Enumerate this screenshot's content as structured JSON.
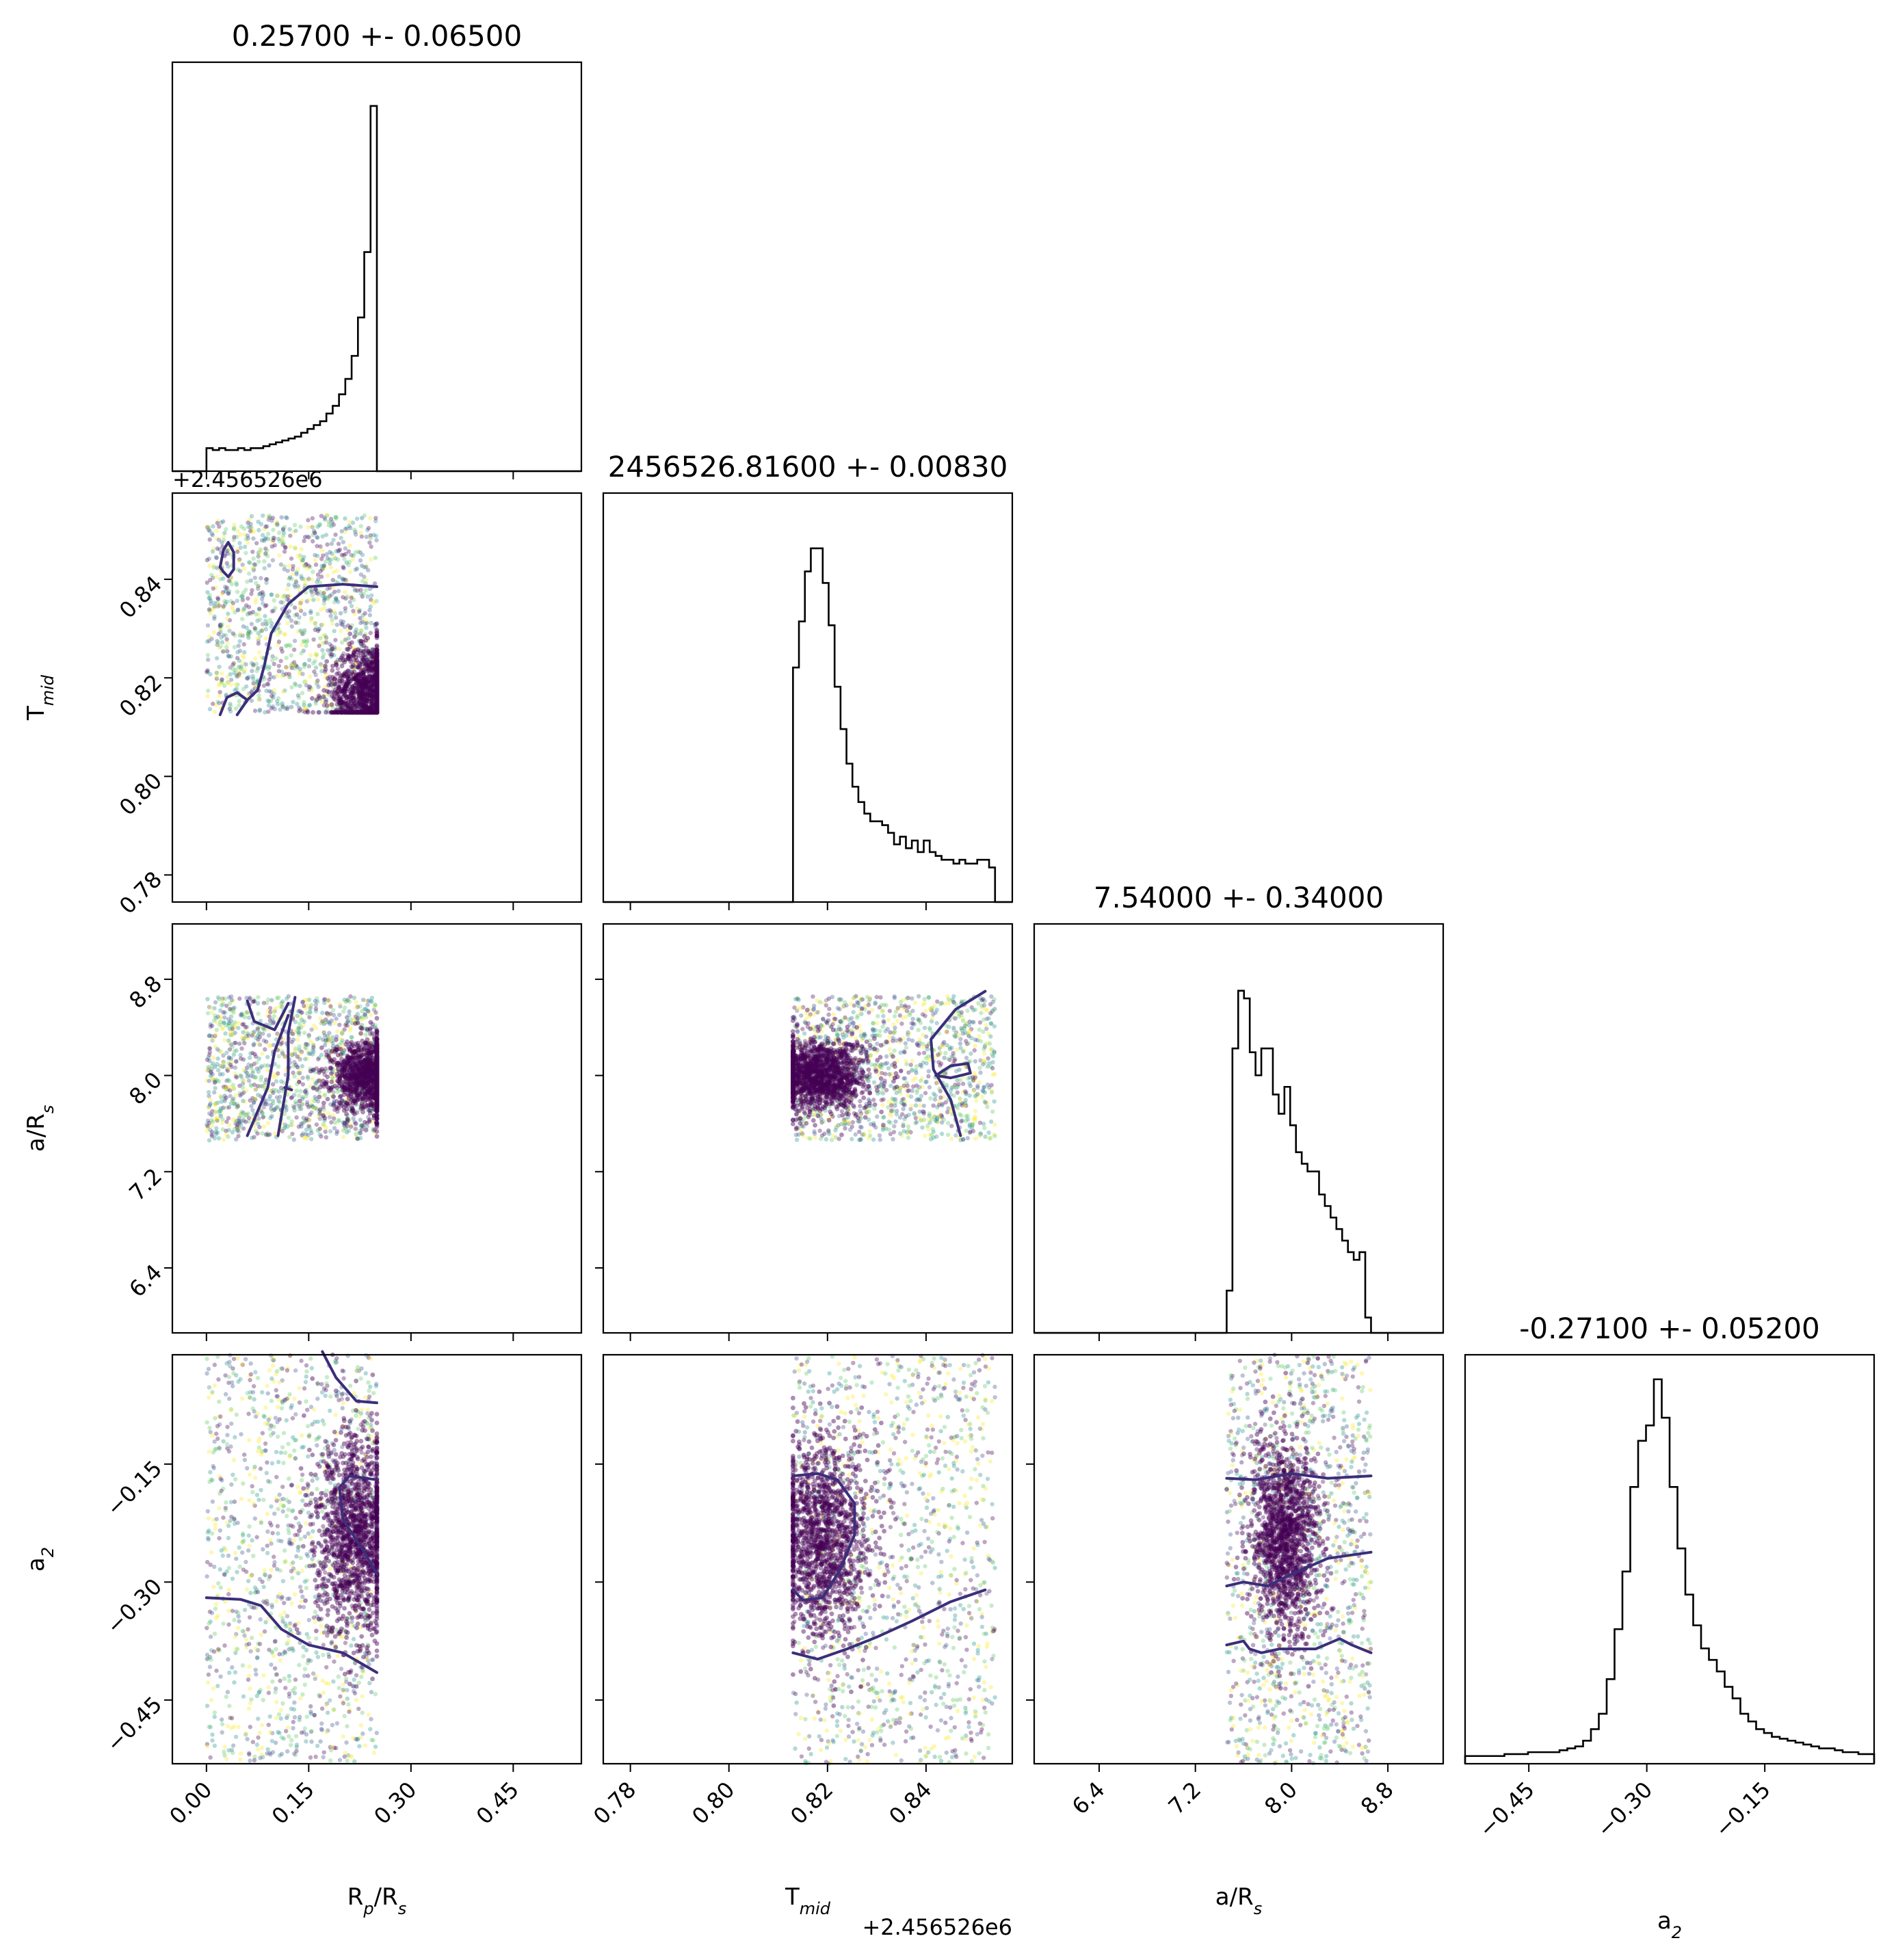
{
  "chart_data": {
    "type": "corner",
    "parameters": [
      {
        "key": "rp",
        "label": "R",
        "sub": "p",
        "label2": "/R",
        "sub2": "s"
      },
      {
        "key": "tmid",
        "label": "T",
        "sub": "mid",
        "label2": "",
        "sub2": ""
      },
      {
        "key": "ars",
        "label": "a/R",
        "sub": "s",
        "label2": "",
        "sub2": ""
      },
      {
        "key": "a2",
        "label": "a",
        "sub": "2",
        "label2": "",
        "sub2": ""
      }
    ],
    "titles": [
      "0.25700 +- 0.06500",
      "2456526.81600 +- 0.00830",
      "7.54000 +- 0.34000",
      "-0.27100 +- 0.05200"
    ],
    "ranges": {
      "rp": [
        -0.05,
        0.55
      ],
      "tmid": [
        0.7745,
        0.8575
      ],
      "ars": [
        5.86,
        9.26
      ],
      "a2": [
        -0.531,
        -0.011
      ]
    },
    "ticks": {
      "rp": [
        0.0,
        0.15,
        0.3,
        0.45
      ],
      "tmid": [
        0.78,
        0.8,
        0.82,
        0.84
      ],
      "ars": [
        6.4,
        7.2,
        8.0,
        8.8
      ],
      "a2": [
        -0.45,
        -0.3,
        -0.15
      ]
    },
    "tick_labels": {
      "rp": [
        "0.00",
        "0.15",
        "0.30",
        "0.45"
      ],
      "tmid": [
        "0.78",
        "0.80",
        "0.82",
        "0.84"
      ],
      "ars": [
        "6.4",
        "7.2",
        "8.0",
        "8.8"
      ],
      "a2": [
        "−0.45",
        "−0.30",
        "−0.15"
      ]
    },
    "offset_text": "+2.456526e6",
    "histograms": {
      "rp": {
        "range": [
          0.0,
          0.25
        ],
        "ymax": 1.0,
        "counts": [
          0.06,
          0.055,
          0.06,
          0.055,
          0.055,
          0.06,
          0.055,
          0.06,
          0.06,
          0.065,
          0.07,
          0.075,
          0.08,
          0.085,
          0.09,
          0.1,
          0.11,
          0.12,
          0.13,
          0.15,
          0.17,
          0.2,
          0.24,
          0.3,
          0.4,
          0.57,
          0.95
        ]
      },
      "tmid": {
        "range": [
          0.813,
          0.854
        ],
        "ymax": 1.0,
        "counts": [
          0.61,
          0.73,
          0.86,
          0.92,
          0.92,
          0.83,
          0.72,
          0.56,
          0.45,
          0.36,
          0.3,
          0.26,
          0.23,
          0.21,
          0.21,
          0.2,
          0.18,
          0.15,
          0.17,
          0.14,
          0.16,
          0.13,
          0.16,
          0.13,
          0.12,
          0.11,
          0.11,
          0.1,
          0.11,
          0.1,
          0.1,
          0.11,
          0.11,
          0.09
        ]
      },
      "ars": {
        "range": [
          7.46,
          8.66
        ],
        "ymax": 1.0,
        "counts": [
          0.11,
          0.74,
          0.89,
          0.87,
          0.73,
          0.67,
          0.74,
          0.74,
          0.62,
          0.57,
          0.64,
          0.54,
          0.47,
          0.44,
          0.42,
          0.42,
          0.36,
          0.33,
          0.3,
          0.27,
          0.24,
          0.21,
          0.19,
          0.21,
          0.04
        ]
      },
      "a2": {
        "range": [
          -0.531,
          -0.011
        ],
        "ymax": 1.0,
        "counts": [
          0.02,
          0.02,
          0.02,
          0.02,
          0.02,
          0.025,
          0.025,
          0.025,
          0.03,
          0.03,
          0.03,
          0.03,
          0.035,
          0.04,
          0.045,
          0.06,
          0.09,
          0.13,
          0.22,
          0.35,
          0.5,
          0.72,
          0.84,
          0.88,
          1.0,
          0.9,
          0.72,
          0.56,
          0.44,
          0.36,
          0.3,
          0.27,
          0.24,
          0.2,
          0.17,
          0.13,
          0.11,
          0.09,
          0.08,
          0.07,
          0.065,
          0.06,
          0.055,
          0.05,
          0.045,
          0.04,
          0.04,
          0.035,
          0.03,
          0.03,
          0.025,
          0.025
        ]
      }
    },
    "scatter": {
      "rp-tmid": {
        "dense": [
          0.245,
          0.817
        ],
        "spread": [
          0.0,
          0.25,
          0.813,
          0.853
        ]
      },
      "rp-ars": {
        "dense": [
          0.245,
          8.0
        ],
        "spread": [
          0.0,
          0.25,
          7.46,
          8.66
        ]
      },
      "tmid-ars": {
        "dense": [
          0.818,
          8.0
        ],
        "spread": [
          0.813,
          0.854,
          7.46,
          8.66
        ]
      },
      "rp-a2": {
        "dense": [
          0.22,
          -0.24
        ],
        "spread": [
          0.0,
          0.25,
          -0.531,
          -0.011
        ]
      },
      "tmid-a2": {
        "dense": [
          0.819,
          -0.245
        ],
        "spread": [
          0.813,
          0.854,
          -0.531,
          -0.011
        ]
      },
      "ars-a2": {
        "dense": [
          7.95,
          -0.245
        ],
        "spread": [
          7.46,
          8.66,
          -0.531,
          -0.011
        ]
      }
    },
    "contours": {
      "rp-tmid": [
        [
          [
            0.02,
            0.8425
          ],
          [
            0.025,
            0.846
          ],
          [
            0.032,
            0.8475
          ],
          [
            0.04,
            0.8455
          ],
          [
            0.04,
            0.842
          ],
          [
            0.032,
            0.8405
          ],
          [
            0.025,
            0.8415
          ],
          [
            0.02,
            0.8425
          ]
        ],
        [
          [
            0.25,
            0.8385
          ],
          [
            0.2,
            0.839
          ],
          [
            0.15,
            0.8385
          ],
          [
            0.12,
            0.835
          ],
          [
            0.095,
            0.829
          ],
          [
            0.085,
            0.8225
          ],
          [
            0.075,
            0.8175
          ],
          [
            0.06,
            0.8155
          ],
          [
            0.045,
            0.8125
          ]
        ],
        [
          [
            0.02,
            0.8125
          ],
          [
            0.03,
            0.816
          ],
          [
            0.045,
            0.817
          ],
          [
            0.06,
            0.8155
          ]
        ]
      ],
      "rp-ars": [
        [
          [
            0.06,
            8.62
          ],
          [
            0.07,
            8.45
          ],
          [
            0.1,
            8.38
          ],
          [
            0.12,
            8.6
          ]
        ],
        [
          [
            0.12,
            8.5
          ],
          [
            0.1,
            8.2
          ],
          [
            0.09,
            7.9
          ],
          [
            0.06,
            7.5
          ]
        ],
        [
          [
            0.13,
            8.65
          ],
          [
            0.12,
            8.35
          ],
          [
            0.12,
            8.0
          ],
          [
            0.105,
            7.5
          ]
        ],
        [
          [
            0.115,
            7.9
          ],
          [
            0.125,
            7.88
          ]
        ]
      ],
      "tmid-ars": [
        [
          [
            0.852,
            8.7
          ],
          [
            0.846,
            8.55
          ],
          [
            0.841,
            8.3
          ],
          [
            0.8415,
            8.05
          ],
          [
            0.845,
            7.8
          ],
          [
            0.847,
            7.5
          ]
        ],
        [
          [
            0.842,
            8.0
          ],
          [
            0.845,
            8.08
          ],
          [
            0.8485,
            8.1
          ],
          [
            0.849,
            8.02
          ],
          [
            0.845,
            7.98
          ],
          [
            0.842,
            8.0
          ]
        ]
      ],
      "rp-a2": [
        [
          [
            0.17,
            -0.007
          ],
          [
            0.19,
            -0.04
          ],
          [
            0.22,
            -0.07
          ],
          [
            0.25,
            -0.072
          ]
        ],
        [
          [
            0.25,
            -0.29
          ],
          [
            0.23,
            -0.26
          ],
          [
            0.2,
            -0.22
          ],
          [
            0.195,
            -0.18
          ],
          [
            0.21,
            -0.165
          ],
          [
            0.25,
            -0.17
          ]
        ],
        [
          [
            0.0,
            -0.32
          ],
          [
            0.05,
            -0.322
          ],
          [
            0.08,
            -0.33
          ],
          [
            0.11,
            -0.36
          ],
          [
            0.15,
            -0.38
          ],
          [
            0.2,
            -0.39
          ],
          [
            0.25,
            -0.415
          ]
        ]
      ],
      "tmid-a2": [
        [
          [
            0.813,
            -0.165
          ],
          [
            0.818,
            -0.162
          ],
          [
            0.822,
            -0.17
          ],
          [
            0.8255,
            -0.2
          ],
          [
            0.8255,
            -0.24
          ],
          [
            0.8225,
            -0.285
          ],
          [
            0.819,
            -0.32
          ],
          [
            0.815,
            -0.323
          ],
          [
            0.813,
            -0.31
          ]
        ],
        [
          [
            0.813,
            -0.39
          ],
          [
            0.818,
            -0.398
          ],
          [
            0.824,
            -0.385
          ],
          [
            0.83,
            -0.37
          ],
          [
            0.837,
            -0.35
          ],
          [
            0.845,
            -0.325
          ],
          [
            0.852,
            -0.31
          ]
        ]
      ],
      "ars-a2": [
        [
          [
            7.46,
            -0.168
          ],
          [
            7.7,
            -0.17
          ],
          [
            8.0,
            -0.162
          ],
          [
            8.3,
            -0.168
          ],
          [
            8.66,
            -0.165
          ]
        ],
        [
          [
            7.46,
            -0.305
          ],
          [
            7.6,
            -0.3
          ],
          [
            7.8,
            -0.305
          ],
          [
            8.0,
            -0.29
          ],
          [
            8.3,
            -0.27
          ],
          [
            8.66,
            -0.262
          ]
        ],
        [
          [
            7.46,
            -0.38
          ],
          [
            7.6,
            -0.375
          ],
          [
            7.65,
            -0.385
          ],
          [
            7.75,
            -0.39
          ],
          [
            7.9,
            -0.385
          ],
          [
            8.1,
            -0.385
          ],
          [
            8.2,
            -0.385
          ],
          [
            8.4,
            -0.372
          ],
          [
            8.5,
            -0.38
          ],
          [
            8.66,
            -0.39
          ]
        ]
      ]
    },
    "colors": {
      "axes": "#000000",
      "histogram": "#000000",
      "contour": "#3b2e7a",
      "dense": "#440154",
      "viridis": [
        "#440154",
        "#3b528b",
        "#21918c",
        "#5ec962",
        "#fde725"
      ]
    }
  }
}
